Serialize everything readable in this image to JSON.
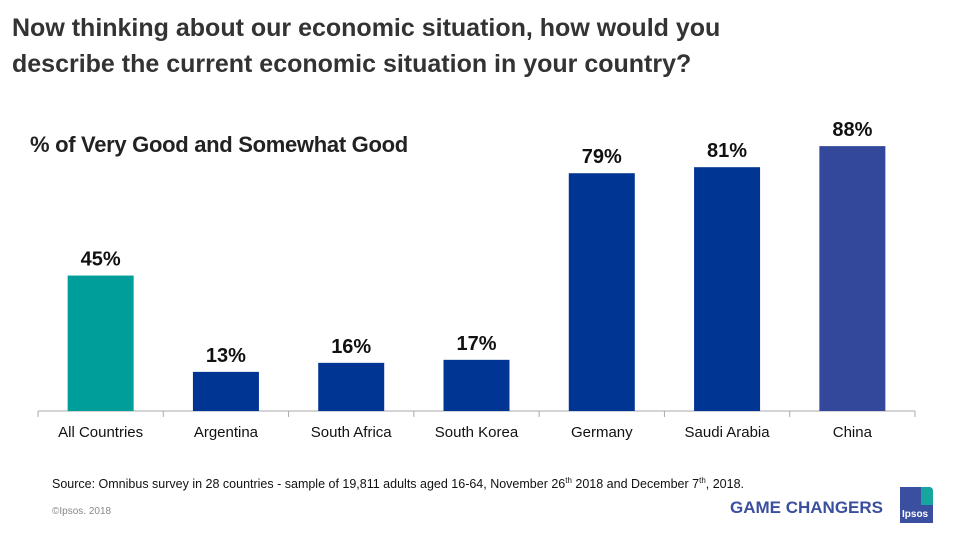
{
  "title_line1": "Now thinking about our economic situation, how would you",
  "title_line2": "describe the current economic situation in your country?",
  "footer": {
    "source_pre": "Source: Omnibus survey in 28 countries - sample of 19,811 adults aged 16-64,  November 26",
    "sup1": "th",
    "source_mid": " 2018  and December 7",
    "sup2": "th",
    "source_post": ", 2018.",
    "copyright": "©Ipsos. 2018",
    "tagline": "GAME CHANGERS",
    "logo": "Ipsos"
  },
  "chart_data": {
    "type": "bar",
    "title": "% of Very Good and Somewhat Good",
    "categories": [
      "All Countries",
      "Argentina",
      "South Africa",
      "South Korea",
      "Germany",
      "Saudi Arabia",
      "China"
    ],
    "values": [
      45,
      13,
      16,
      17,
      79,
      81,
      88
    ],
    "labels": [
      "45%",
      "13%",
      "16%",
      "17%",
      "79%",
      "81%",
      "88%"
    ],
    "colors": [
      "#009e9a",
      "#003594",
      "#003594",
      "#003594",
      "#003594",
      "#003594",
      "#34489b"
    ],
    "ylim": [
      0,
      100
    ],
    "grid": false
  }
}
